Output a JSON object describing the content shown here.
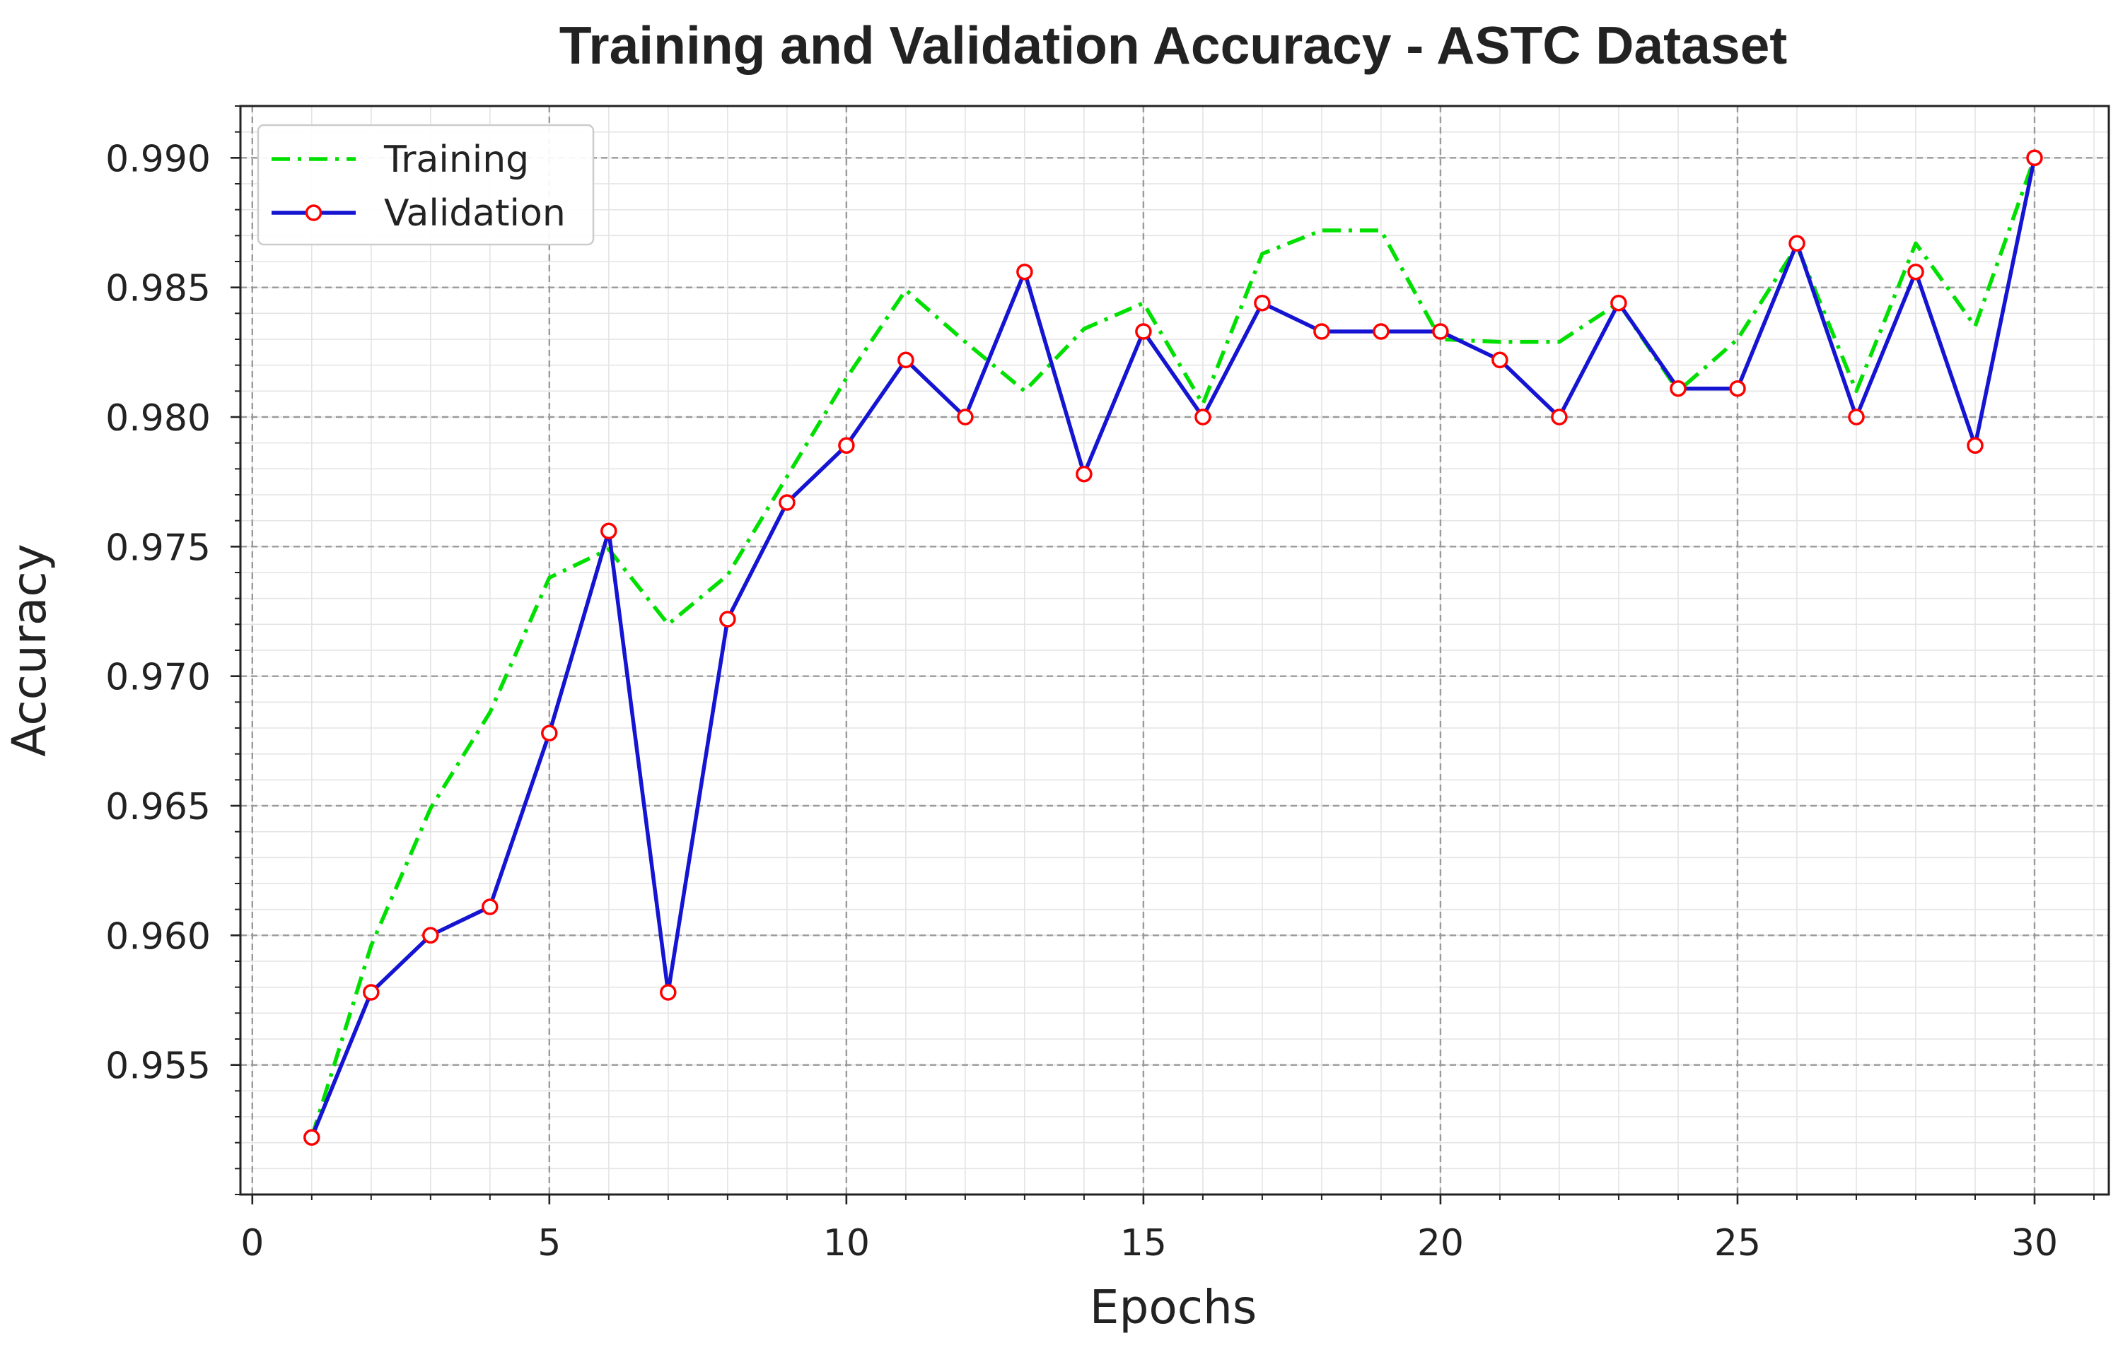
{
  "chart_data": {
    "type": "line",
    "title": "Training and Validation Accuracy - ASTC Dataset",
    "xlabel": "Epochs",
    "ylabel": "Accuracy",
    "x": [
      1,
      2,
      3,
      4,
      5,
      6,
      7,
      8,
      9,
      10,
      11,
      12,
      13,
      14,
      15,
      16,
      17,
      18,
      19,
      20,
      21,
      22,
      23,
      24,
      25,
      26,
      27,
      28,
      29,
      30
    ],
    "xlim": [
      -0.2,
      31.25
    ],
    "ylim": [
      0.95,
      0.992
    ],
    "xtick_labels": [
      "0",
      "5",
      "10",
      "15",
      "20",
      "25",
      "30"
    ],
    "ytick_labels": [
      "0.955",
      "0.960",
      "0.965",
      "0.970",
      "0.975",
      "0.980",
      "0.985",
      "0.990"
    ],
    "grid": true,
    "minor_grid": true,
    "legend": "top-left",
    "series": [
      {
        "name": "Training",
        "color": "#00e000",
        "linestyle": "dash-dot",
        "values": [
          0.9522,
          0.9596,
          0.9649,
          0.9686,
          0.9738,
          0.9749,
          0.972,
          0.9739,
          0.9777,
          0.9815,
          0.9849,
          0.9829,
          0.981,
          0.9834,
          0.9844,
          0.9805,
          0.9863,
          0.9872,
          0.9872,
          0.983,
          0.9829,
          0.9829,
          0.9844,
          0.981,
          0.983,
          0.9866,
          0.981,
          0.9867,
          0.9835,
          0.99
        ]
      },
      {
        "name": "Validation",
        "color": "#1414d2",
        "linestyle": "solid",
        "marker": "circle",
        "marker_edge_color": "#ff0000",
        "marker_face_color": "#ffffff",
        "values": [
          0.9522,
          0.9578,
          0.96,
          0.9611,
          0.9678,
          0.9756,
          0.9578,
          0.9722,
          0.9767,
          0.9789,
          0.9822,
          0.98,
          0.9856,
          0.9778,
          0.9833,
          0.98,
          0.9844,
          0.9833,
          0.9833,
          0.9833,
          0.9822,
          0.98,
          0.9844,
          0.9811,
          0.9811,
          0.9867,
          0.98,
          0.9856,
          0.9789,
          0.99
        ]
      }
    ]
  }
}
